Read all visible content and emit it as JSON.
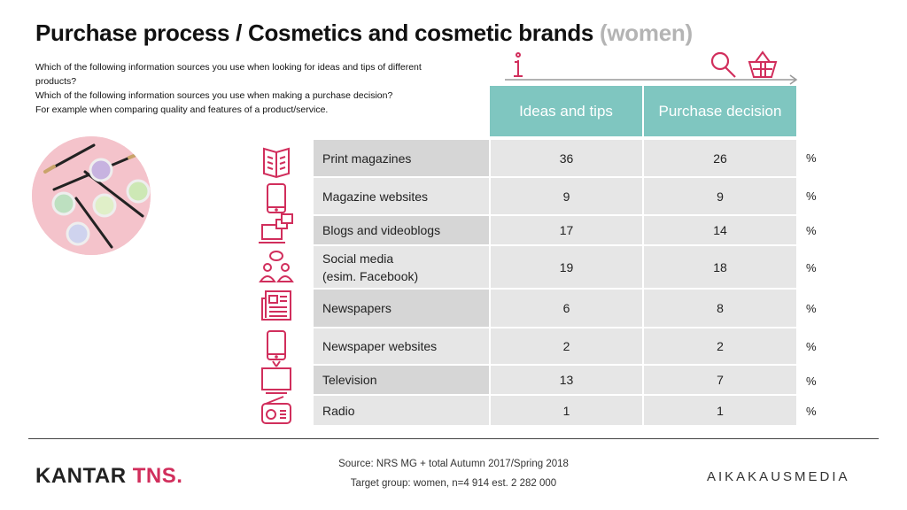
{
  "title": {
    "main": "Purchase process / Cosmetics and cosmetic brands ",
    "qualifier": "(women)"
  },
  "questions": [
    "Which of the following information sources you use when looking for ideas and tips of different products?",
    "Which of the following information sources you use when making a purchase decision?",
    "For example when comparing quality and features of a product/service."
  ],
  "columns": {
    "ideas": "Ideas and tips",
    "purchase": "Purchase decision"
  },
  "unit": "%",
  "rows": [
    {
      "label": "Print magazines",
      "ideas": "36",
      "purchase": "26",
      "icon": "magazine-icon"
    },
    {
      "label": "Magazine websites",
      "ideas": "9",
      "purchase": "9",
      "icon": "tablet-icon"
    },
    {
      "label": "Blogs and videoblogs",
      "ideas": "17",
      "purchase": "14",
      "icon": "laptop-windows-icon"
    },
    {
      "label": "Social media",
      "label2": "(esim. Facebook)",
      "ideas": "19",
      "purchase": "18",
      "icon": "people-chat-icon"
    },
    {
      "label": "Newspapers",
      "ideas": "6",
      "purchase": "8",
      "icon": "newspaper-icon"
    },
    {
      "label": "Newspaper websites",
      "ideas": "2",
      "purchase": "2",
      "icon": "tablet-icon"
    },
    {
      "label": "Television",
      "ideas": "13",
      "purchase": "7",
      "icon": "tv-icon"
    },
    {
      "label": "Radio",
      "ideas": "1",
      "purchase": "1",
      "icon": "radio-icon"
    }
  ],
  "source": {
    "line1": "Source: NRS MG + total Autumn 2017/Spring 2018",
    "line2": "Target group: women, n=4 914 est. 2 282 000"
  },
  "logos": {
    "kantar": "KANTAR ",
    "tns": "TNS.",
    "aika": "AIKAKAUSMEDIA"
  },
  "colors": {
    "accent_teal": "#7fc6c0",
    "icon_pink": "#d12e5c",
    "row_gray": "#e6e6e6"
  }
}
